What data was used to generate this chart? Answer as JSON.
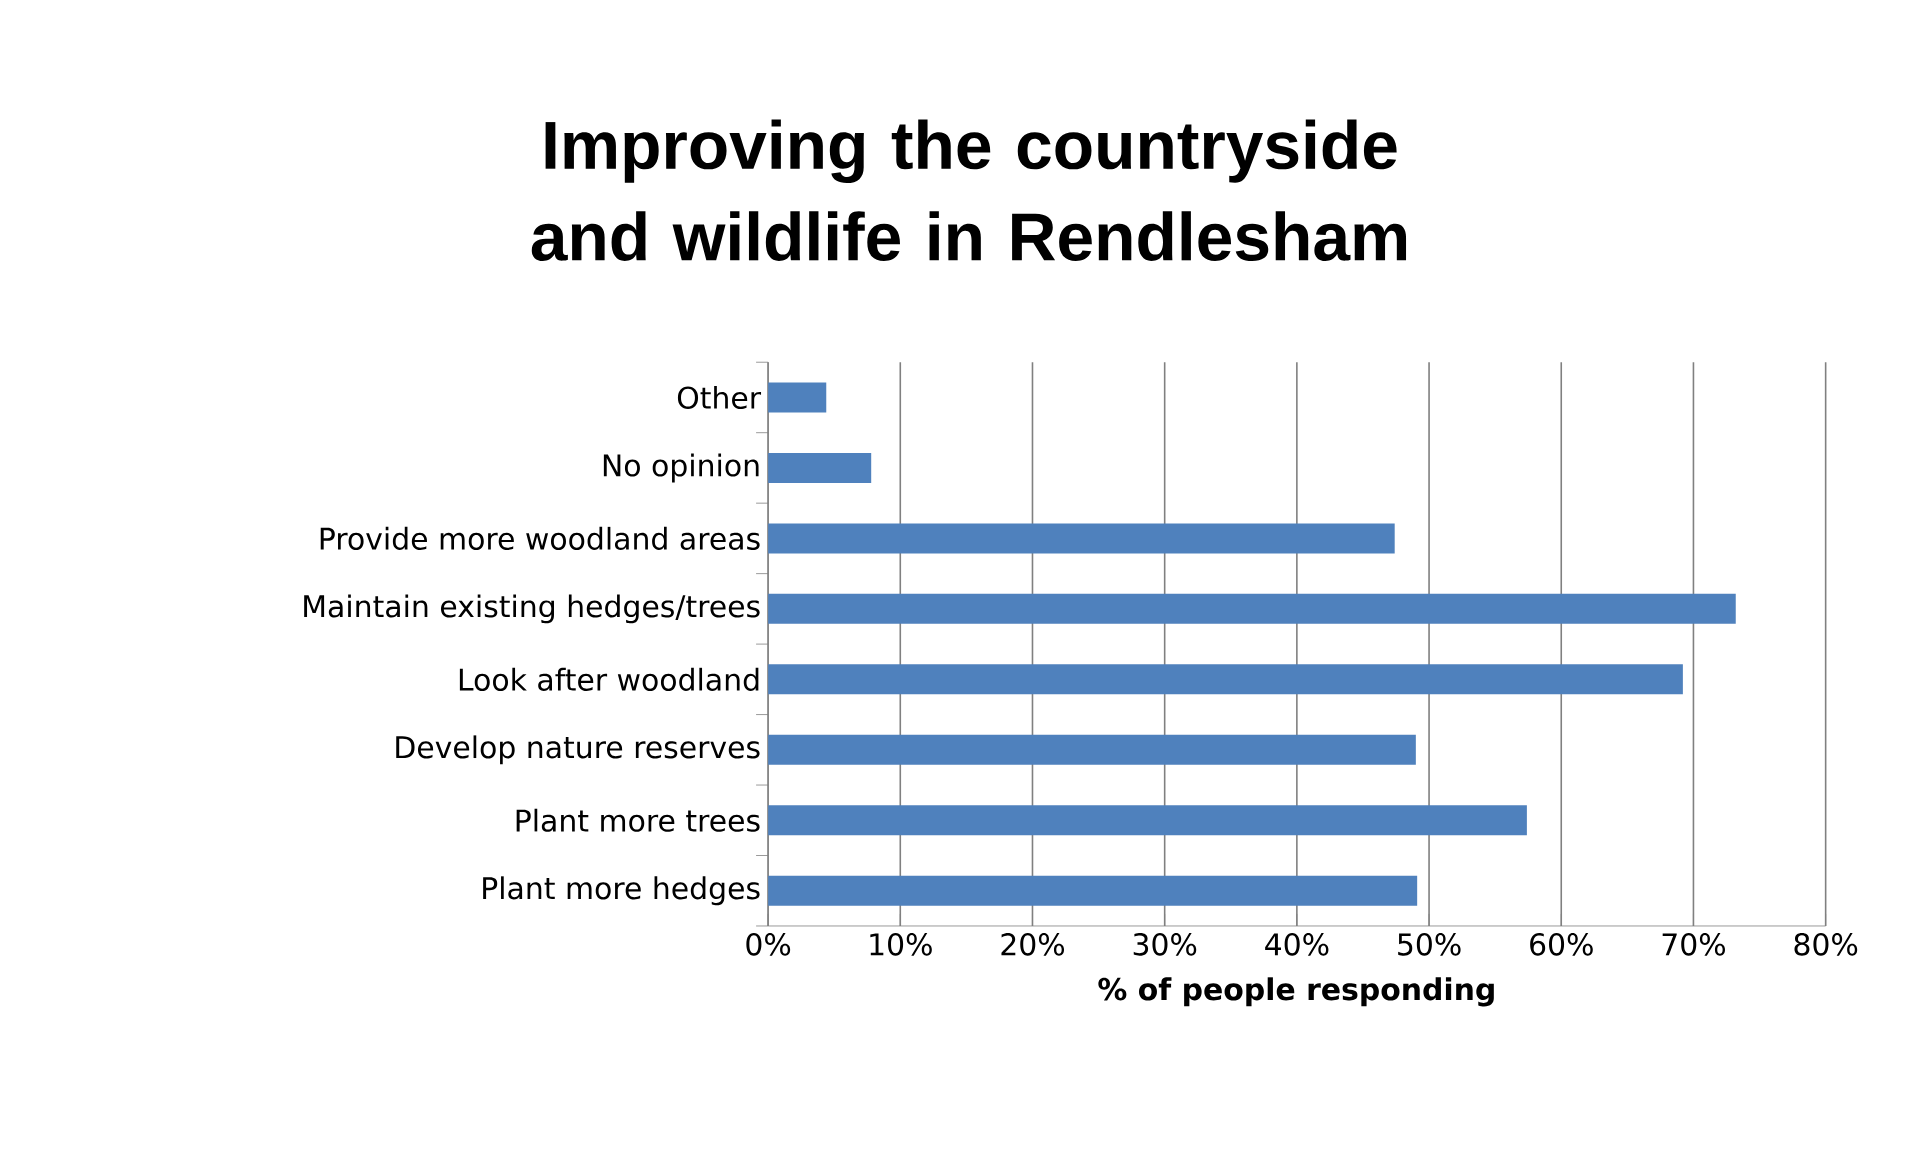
{
  "chart_data": {
    "type": "bar",
    "orientation": "horizontal",
    "title": "Improving the countryside and wildlife in Rendlesham",
    "xlabel": "% of people responding",
    "categories": [
      "Other",
      "No opinion",
      "Provide more woodland areas",
      "Maintain existing hedges/trees",
      "Look after woodland",
      "Develop nature reserves",
      "Plant more trees",
      "Plant more hedges"
    ],
    "values": [
      4.4,
      7.8,
      47.4,
      73.2,
      69.2,
      49.0,
      57.4,
      49.1
    ],
    "color": "#4f81bd",
    "xlim": [
      0,
      80
    ],
    "xticks": [
      {
        "value": 0,
        "label": "0%"
      },
      {
        "value": 10,
        "label": "10%"
      },
      {
        "value": 20,
        "label": "20%"
      },
      {
        "value": 30,
        "label": "30%"
      },
      {
        "value": 40,
        "label": "40%"
      },
      {
        "value": 50,
        "label": "50%"
      },
      {
        "value": 60,
        "label": "60%"
      },
      {
        "value": 70,
        "label": "70%"
      },
      {
        "value": 80,
        "label": "80%"
      }
    ],
    "grid": "x"
  }
}
